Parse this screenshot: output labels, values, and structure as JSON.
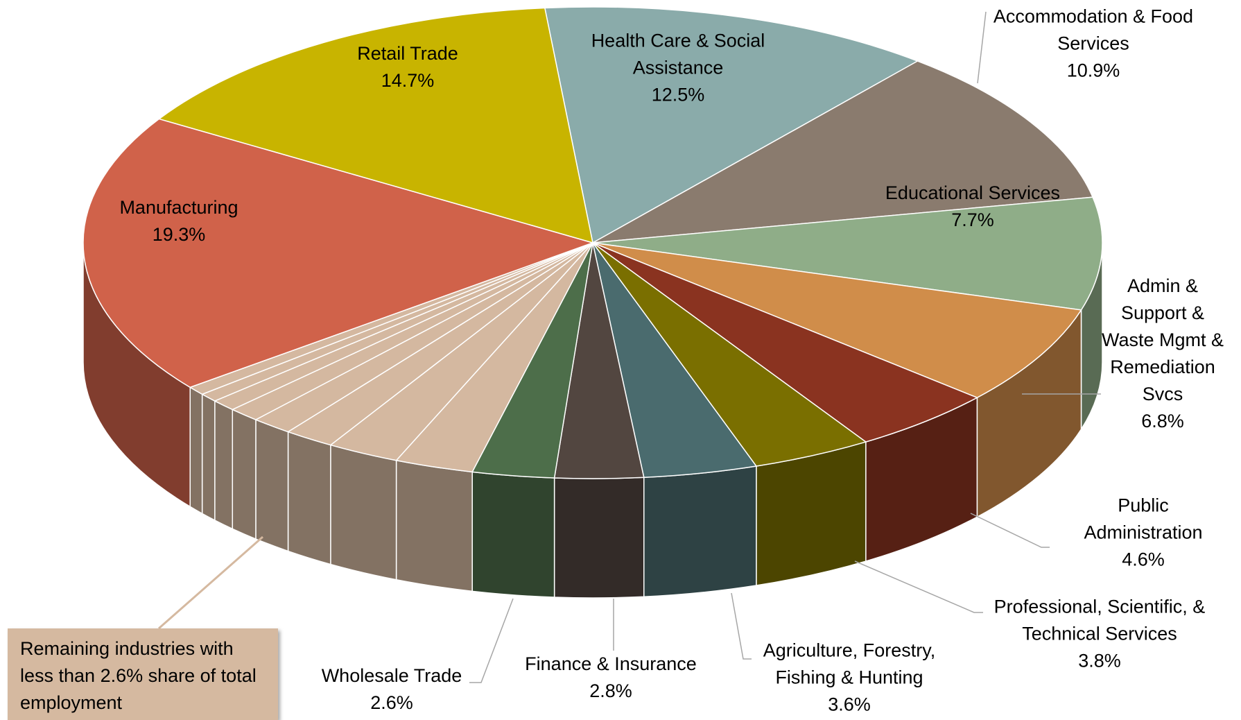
{
  "chart_data": {
    "type": "pie",
    "categories": [
      "Health Care & Social Assistance",
      "Accommodation & Food Services",
      "Educational Services",
      "Admin & Support & Waste Mgmt & Remediation Svcs",
      "Public Administration",
      "Professional, Scientific, & Technical Services",
      "Agriculture, Forestry, Fishing & Hunting",
      "Finance & Insurance",
      "Wholesale Trade",
      null,
      null,
      null,
      null,
      null,
      null,
      null,
      null,
      "Manufacturing",
      "Retail Trade"
    ],
    "values": [
      12.5,
      10.9,
      7.7,
      6.8,
      4.6,
      3.8,
      3.6,
      2.8,
      2.6,
      2.5,
      2.3,
      1.6,
      1.3,
      1.0,
      0.8,
      0.6,
      0.6,
      19.3,
      14.7
    ],
    "value_labels": [
      "12.5%",
      "10.9%",
      "7.7%",
      "6.8%",
      "4.6%",
      "3.8%",
      "3.6%",
      "2.8%",
      "2.6%",
      null,
      null,
      null,
      null,
      null,
      null,
      null,
      null,
      "19.3%",
      "14.7%"
    ],
    "colors": [
      "#8aabaa",
      "#8a7b6e",
      "#8fad88",
      "#d08d4a",
      "#8a3320",
      "#7a6f00",
      "#4a6b6e",
      "#524640",
      "#4d6e4a",
      "#d4b8a0",
      "#d4b8a0",
      "#d4b8a0",
      "#d4b8a0",
      "#d4b8a0",
      "#d4b8a0",
      "#d4b8a0",
      "#d4b8a0",
      "#d0624a",
      "#c8b400"
    ],
    "annotation": "Remaining industries with less than 2.6% share of total employment"
  }
}
